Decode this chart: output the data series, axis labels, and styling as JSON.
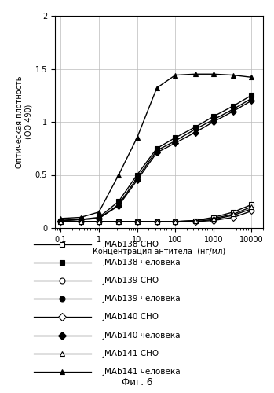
{
  "title": "",
  "xlabel": "Концентрация антитела  (нг/мл)",
  "ylabel": "Оптическая плотность\n(ОО 490)",
  "fig_caption": "Фиг. 6",
  "xlim_log": [
    0.07,
    20000
  ],
  "ylim": [
    0,
    2.0
  ],
  "yticks": [
    0,
    0.5,
    1.0,
    1.5,
    2.0
  ],
  "x_values": [
    0.1,
    0.33,
    1.0,
    3.3,
    10,
    33,
    100,
    333,
    1000,
    3333,
    10000
  ],
  "series": [
    {
      "label": "JMAb138 CHO",
      "marker": "s",
      "fillstyle": "none",
      "color": "#000000",
      "linewidth": 1.0,
      "markersize": 4,
      "y": [
        0.06,
        0.06,
        0.06,
        0.06,
        0.06,
        0.06,
        0.06,
        0.07,
        0.1,
        0.15,
        0.22
      ]
    },
    {
      "label": "JMAb138 человека",
      "marker": "s",
      "fillstyle": "full",
      "color": "#000000",
      "linewidth": 1.0,
      "markersize": 4,
      "y": [
        0.07,
        0.08,
        0.1,
        0.25,
        0.5,
        0.75,
        0.85,
        0.95,
        1.05,
        1.15,
        1.25
      ]
    },
    {
      "label": "JMAb139 CHO",
      "marker": "o",
      "fillstyle": "none",
      "color": "#000000",
      "linewidth": 1.0,
      "markersize": 4,
      "y": [
        0.06,
        0.06,
        0.06,
        0.06,
        0.06,
        0.06,
        0.06,
        0.06,
        0.08,
        0.12,
        0.18
      ]
    },
    {
      "label": "JMAb139 человека",
      "marker": "o",
      "fillstyle": "full",
      "color": "#000000",
      "linewidth": 1.0,
      "markersize": 4,
      "y": [
        0.07,
        0.08,
        0.09,
        0.22,
        0.47,
        0.73,
        0.82,
        0.93,
        1.02,
        1.12,
        1.22
      ]
    },
    {
      "label": "JMAb140 CHO",
      "marker": "D",
      "fillstyle": "none",
      "color": "#000000",
      "linewidth": 1.0,
      "markersize": 4,
      "y": [
        0.06,
        0.06,
        0.06,
        0.06,
        0.06,
        0.06,
        0.06,
        0.06,
        0.07,
        0.1,
        0.16
      ]
    },
    {
      "label": "JMAb140 человека",
      "marker": "D",
      "fillstyle": "full",
      "color": "#000000",
      "linewidth": 1.0,
      "markersize": 4,
      "y": [
        0.07,
        0.08,
        0.09,
        0.21,
        0.45,
        0.71,
        0.8,
        0.9,
        1.0,
        1.1,
        1.2
      ]
    },
    {
      "label": "JMAb141 CHO",
      "marker": "^",
      "fillstyle": "none",
      "color": "#000000",
      "linewidth": 1.0,
      "markersize": 4,
      "y": [
        0.06,
        0.06,
        0.06,
        0.06,
        0.06,
        0.06,
        0.06,
        0.07,
        0.09,
        0.13,
        0.2
      ]
    },
    {
      "label": "JMAb141 человека",
      "marker": "^",
      "fillstyle": "full",
      "color": "#000000",
      "linewidth": 1.0,
      "markersize": 4,
      "y": [
        0.09,
        0.1,
        0.15,
        0.5,
        0.85,
        1.32,
        1.44,
        1.45,
        1.45,
        1.44,
        1.42
      ]
    }
  ],
  "legend_entries": [
    {
      "label": "JMAb138 CHO",
      "marker": "s",
      "fillstyle": "none"
    },
    {
      "label": "JMAb138 человека",
      "marker": "s",
      "fillstyle": "full"
    },
    {
      "label": "JMAb139 CHO",
      "marker": "o",
      "fillstyle": "none"
    },
    {
      "label": "JMAb139 человека",
      "marker": "o",
      "fillstyle": "full"
    },
    {
      "label": "JMAb140 CHO",
      "marker": "D",
      "fillstyle": "none"
    },
    {
      "label": "JMAb140 человека",
      "marker": "D",
      "fillstyle": "full"
    },
    {
      "label": "JMAb141 CHO",
      "marker": "^",
      "fillstyle": "none"
    },
    {
      "label": "JMAb141 человека",
      "marker": "^",
      "fillstyle": "full"
    }
  ],
  "background_color": "#ffffff",
  "grid_color": "#bbbbbb"
}
